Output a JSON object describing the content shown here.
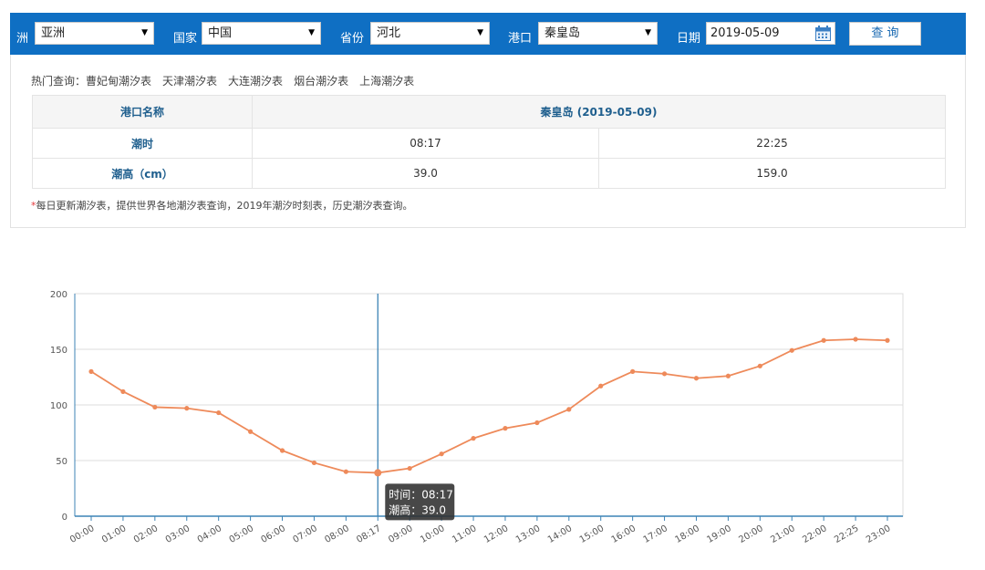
{
  "filters": {
    "continent_label": "洲",
    "continent_value": "亚洲",
    "country_label": "国家",
    "country_value": "中国",
    "province_label": "省份",
    "province_value": "河北",
    "port_label": "港口",
    "port_value": "秦皇岛",
    "date_label": "日期",
    "date_value": "2019-05-09",
    "query_button": "查 询"
  },
  "hot_query": {
    "label": "热门查询：",
    "links": [
      "曹妃甸潮汐表",
      "天津潮汐表",
      "大连潮汐表",
      "烟台潮汐表",
      "上海潮汐表"
    ]
  },
  "tide_table": {
    "port_header": "港口名称",
    "port_title": "秦皇岛 (2019-05-09)",
    "time_label": "潮时",
    "height_label": "潮高（cm）",
    "times": [
      "08:17",
      "22:25"
    ],
    "heights": [
      "39.0",
      "159.0"
    ]
  },
  "note": {
    "star": "*",
    "text": "每日更新潮汐表，提供世界各地潮汐表查询，2019年潮汐时刻表，历史潮汐表查询。"
  },
  "chart_data": {
    "type": "line",
    "categories": [
      "00:00",
      "01:00",
      "02:00",
      "03:00",
      "04:00",
      "05:00",
      "06:00",
      "07:00",
      "08:00",
      "08:17",
      "09:00",
      "10:00",
      "11:00",
      "12:00",
      "13:00",
      "14:00",
      "15:00",
      "16:00",
      "17:00",
      "18:00",
      "19:00",
      "20:00",
      "21:00",
      "22:00",
      "22:25",
      "23:00"
    ],
    "series": [
      {
        "values": [
          130,
          112,
          98,
          97,
          93,
          76,
          59,
          48,
          40,
          39,
          43,
          56,
          70,
          79,
          84,
          96,
          117,
          130,
          128,
          124,
          126,
          135,
          149,
          158,
          159,
          158
        ]
      }
    ],
    "ylim": [
      0,
      200
    ],
    "yticks": [
      0,
      50,
      100,
      150,
      200
    ],
    "grid": true,
    "line_color": "#ee8a5a",
    "axis_color": "#3c83b5",
    "highlight_index": 9,
    "tooltip": {
      "time_label": "时间：",
      "time": "08:17",
      "height_label": "潮高：",
      "height": "39.0"
    }
  }
}
